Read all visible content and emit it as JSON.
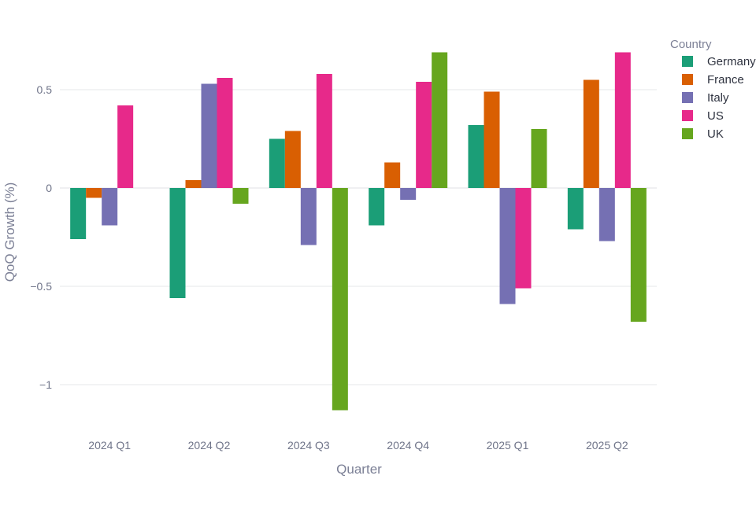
{
  "chart_data": {
    "type": "bar",
    "title": "",
    "xlabel": "Quarter",
    "ylabel": "QoQ Growth (%)",
    "ylim": [
      -1.18,
      0.76
    ],
    "yticks": [
      0.5,
      0,
      -0.5,
      -1
    ],
    "ytick_labels": [
      "0.5",
      "0",
      "−0.5",
      "−1"
    ],
    "grid": true,
    "legend_title": "Country",
    "legend_position": "top-right",
    "categories": [
      "2024 Q1",
      "2024 Q2",
      "2024 Q3",
      "2024 Q4",
      "2025 Q1",
      "2025 Q2"
    ],
    "series": [
      {
        "name": "Germany",
        "color": "#1b9e77",
        "values": [
          -0.26,
          -0.56,
          0.25,
          -0.19,
          0.32,
          -0.21
        ]
      },
      {
        "name": "France",
        "color": "#d95f02",
        "values": [
          -0.05,
          0.04,
          0.29,
          0.13,
          0.49,
          0.55
        ]
      },
      {
        "name": "Italy",
        "color": "#7570b3",
        "values": [
          -0.19,
          0.53,
          -0.29,
          -0.06,
          -0.59,
          -0.27
        ]
      },
      {
        "name": "US",
        "color": "#e7298a",
        "values": [
          0.42,
          0.56,
          0.58,
          0.54,
          -0.51,
          0.69
        ]
      },
      {
        "name": "UK",
        "color": "#66a61e",
        "values": [
          0.0,
          -0.08,
          -1.13,
          0.69,
          0.3,
          -0.68
        ]
      }
    ]
  }
}
